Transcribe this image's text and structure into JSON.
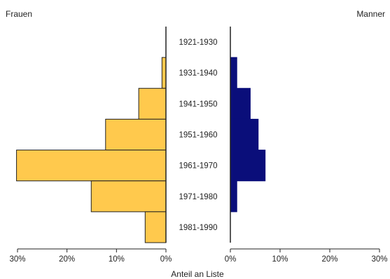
{
  "chart_data": {
    "type": "bar",
    "subtype": "population-pyramid",
    "legend_left": "Frauen",
    "legend_right": "Manner",
    "xlabel": "Anteil an Liste",
    "ylabel": "",
    "categories": [
      "1921-1930",
      "1931-1940",
      "1941-1950",
      "1951-1960",
      "1961-1970",
      "1971-1980",
      "1981-1990"
    ],
    "series": [
      {
        "name": "Frauen",
        "side": "left",
        "color": "#FFC94D",
        "values": [
          0,
          0.8,
          5.5,
          12.2,
          30.2,
          15.1,
          4.2
        ]
      },
      {
        "name": "Manner",
        "side": "right",
        "color": "#0A0E7A",
        "values": [
          0,
          1.3,
          4.0,
          5.6,
          7.0,
          1.3,
          0
        ]
      }
    ],
    "xlim": [
      0,
      30
    ],
    "x_ticks_left": [
      "30%",
      "20%",
      "10%",
      "0%"
    ],
    "x_ticks_right": [
      "0%",
      "10%",
      "20%",
      "30%"
    ],
    "grid": false
  }
}
